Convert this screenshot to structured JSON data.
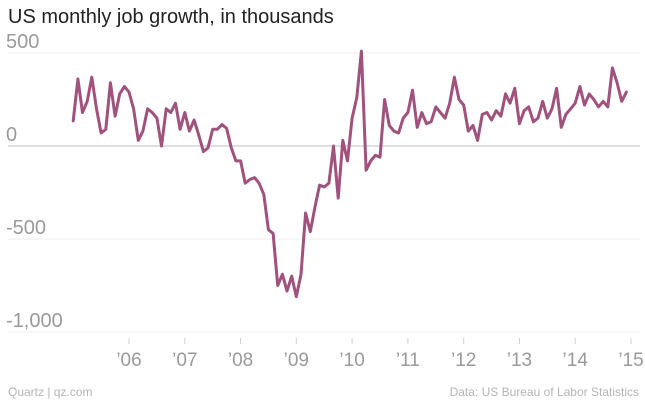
{
  "title": "US monthly job growth, in thousands",
  "footer": {
    "source": "Quartz | qz.com",
    "data_credit": "Data: US Bureau of Labor Statistics"
  },
  "chart_data": {
    "type": "line",
    "title": "US monthly job growth, in thousands",
    "xlabel": "",
    "ylabel": "",
    "ylim": [
      -1050,
      560
    ],
    "x_start": "2005-01",
    "x_end": "2015-02",
    "y_ticks": [
      500,
      0,
      -500,
      -1000
    ],
    "y_tick_labels": [
      "500",
      "0",
      "-500",
      "-1,000"
    ],
    "x_ticks": [
      "2006-01",
      "2007-01",
      "2008-01",
      "2009-01",
      "2010-01",
      "2011-01",
      "2012-01",
      "2013-01",
      "2014-01",
      "2015-01"
    ],
    "x_tick_labels": [
      "’06",
      "’07",
      "’08",
      "’09",
      "’10",
      "’11",
      "’12",
      "’13",
      "’14",
      "’15"
    ],
    "grid": "horizontal",
    "series_color": "#a0527d",
    "baseline_color": "#bfbfbf",
    "gridline_color": "#ececec",
    "series": [
      {
        "values": [
          135,
          360,
          180,
          240,
          370,
          200,
          70,
          90,
          340,
          160,
          280,
          320,
          290,
          200,
          30,
          80,
          200,
          180,
          150,
          0,
          200,
          180,
          230,
          90,
          180,
          80,
          140,
          60,
          -30,
          -10,
          90,
          90,
          115,
          95,
          -10,
          -80,
          -80,
          -200,
          -180,
          -170,
          -200,
          -260,
          -450,
          -470,
          -750,
          -690,
          -780,
          -700,
          -810,
          -690,
          -360,
          -460,
          -330,
          -210,
          -220,
          -200,
          0,
          -280,
          30,
          -80,
          150,
          260,
          510,
          -130,
          -80,
          -50,
          -60,
          250,
          110,
          80,
          70,
          150,
          180,
          300,
          100,
          180,
          120,
          130,
          210,
          180,
          150,
          230,
          370,
          250,
          220,
          80,
          110,
          30,
          170,
          180,
          140,
          190,
          160,
          280,
          230,
          310,
          120,
          190,
          210,
          130,
          150,
          240,
          150,
          200,
          310,
          100,
          170,
          200,
          230,
          320,
          220,
          280,
          250,
          210,
          240,
          210,
          420,
          340,
          240,
          290
        ]
      }
    ]
  }
}
